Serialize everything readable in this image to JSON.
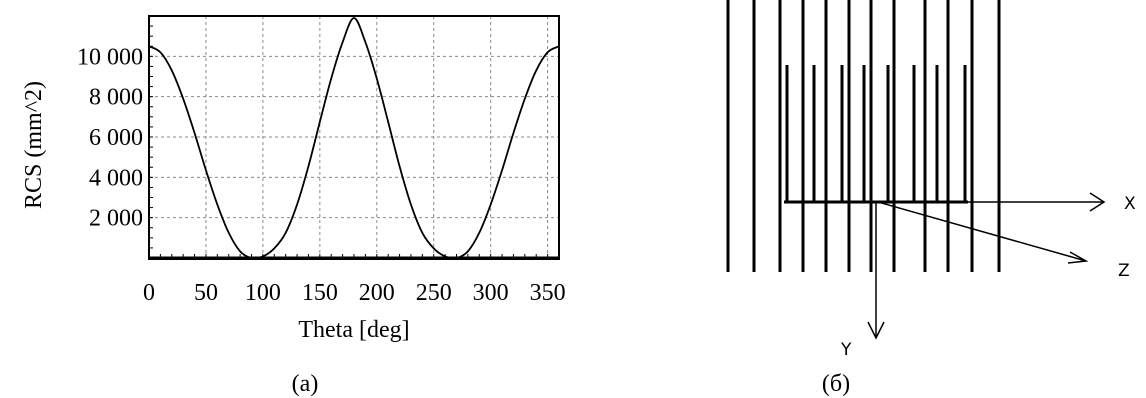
{
  "chart_data": {
    "type": "line",
    "xlabel": "Theta [deg]",
    "ylabel": "RCS (mm^2)",
    "xlim": [
      0,
      360
    ],
    "ylim": [
      0,
      12000
    ],
    "x_ticks": [
      0,
      50,
      100,
      150,
      200,
      250,
      300,
      350
    ],
    "x_tick_labels": [
      "0",
      "50",
      "100",
      "150",
      "200",
      "250",
      "300",
      "350"
    ],
    "y_ticks": [
      2000,
      4000,
      6000,
      8000,
      10000
    ],
    "y_tick_labels": [
      "2 000",
      "4 000",
      "6 000",
      "8 000",
      "10 000"
    ],
    "grid": true,
    "series": [
      {
        "x": [
          0,
          10,
          20,
          30,
          40,
          50,
          60,
          70,
          80,
          90,
          100,
          110,
          120,
          130,
          140,
          150,
          160,
          170,
          180,
          190,
          200,
          210,
          220,
          230,
          240,
          250,
          260,
          270,
          280,
          290,
          300,
          310,
          320,
          330,
          340,
          350,
          360
        ],
        "values": [
          10500,
          10200,
          9300,
          7900,
          6200,
          4350,
          2650,
          1250,
          330,
          0,
          80,
          480,
          1250,
          2650,
          4550,
          6750,
          8900,
          10700,
          11900,
          10700,
          8900,
          6750,
          4550,
          2650,
          1250,
          480,
          80,
          0,
          330,
          1250,
          2650,
          4350,
          6200,
          7900,
          9300,
          10200,
          10500
        ]
      }
    ]
  },
  "captions": {
    "left": "(a)",
    "right": "(б)"
  },
  "diagram": {
    "x_axis_label": "X",
    "y_axis_label": "Y",
    "z_axis_label": "Z"
  }
}
